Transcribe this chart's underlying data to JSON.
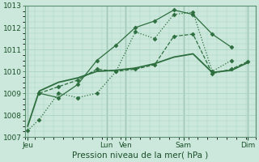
{
  "xlabel": "Pression niveau de la mer( hPa )",
  "bg_color": "#cce8dc",
  "grid_color": "#aad4c4",
  "line_color": "#2d6e3e",
  "dark_line_color": "#1a5028",
  "ylim": [
    1007,
    1013
  ],
  "yticks": [
    1007,
    1008,
    1009,
    1010,
    1011,
    1012,
    1013
  ],
  "xlim": [
    0,
    24
  ],
  "x_day_labels": [
    "Jeu",
    "Lun",
    "Ven",
    "Sam",
    "Dim"
  ],
  "x_day_positions": [
    0.3,
    8.5,
    10.5,
    16.5,
    23.2
  ],
  "vline_positions": [
    0.3,
    8.5,
    10.5,
    16.5,
    23.2
  ],
  "series": [
    {
      "x": [
        0.3,
        1.5,
        3.5,
        5.5,
        7.5,
        9.5,
        11.5,
        13.5,
        15.5,
        17.5,
        19.5,
        21.5
      ],
      "y": [
        1007.3,
        1007.8,
        1009.0,
        1008.8,
        1009.0,
        1010.0,
        1011.8,
        1011.5,
        1012.6,
        1012.7,
        1010.0,
        1010.5
      ],
      "linestyle": "dotted",
      "linewidth": 0.9,
      "marker": "D",
      "markersize": 2.5
    },
    {
      "x": [
        1.5,
        3.5,
        5.5,
        7.5,
        9.5,
        11.5,
        13.5,
        15.5,
        17.5,
        19.5,
        21.5
      ],
      "y": [
        1009.0,
        1008.8,
        1009.4,
        1010.5,
        1011.2,
        1012.0,
        1012.3,
        1012.8,
        1012.6,
        1011.7,
        1011.1
      ],
      "linestyle": "solid",
      "linewidth": 0.9,
      "marker": "D",
      "markersize": 2.5
    },
    {
      "x": [
        1.5,
        3.5,
        5.5,
        7.5,
        9.5,
        11.5,
        13.5,
        15.5,
        17.5,
        19.5,
        21.5,
        23.2
      ],
      "y": [
        1009.0,
        1009.3,
        1009.6,
        1010.1,
        1010.0,
        1010.1,
        1010.3,
        1011.6,
        1011.7,
        1009.9,
        1010.1,
        1010.45
      ],
      "linestyle": "dashed",
      "linewidth": 0.9,
      "marker": "D",
      "markersize": 2.5
    },
    {
      "x": [
        0.3,
        1.5,
        3.5,
        5.5,
        7.5,
        9.5,
        11.5,
        13.5,
        15.5,
        17.5,
        19.5,
        21.5,
        23.2
      ],
      "y": [
        1007.5,
        1009.1,
        1009.5,
        1009.7,
        1010.0,
        1010.05,
        1010.15,
        1010.35,
        1010.65,
        1010.8,
        1009.95,
        1010.05,
        1010.4
      ],
      "linestyle": "solid",
      "linewidth": 1.3,
      "marker": null,
      "markersize": 0
    }
  ]
}
